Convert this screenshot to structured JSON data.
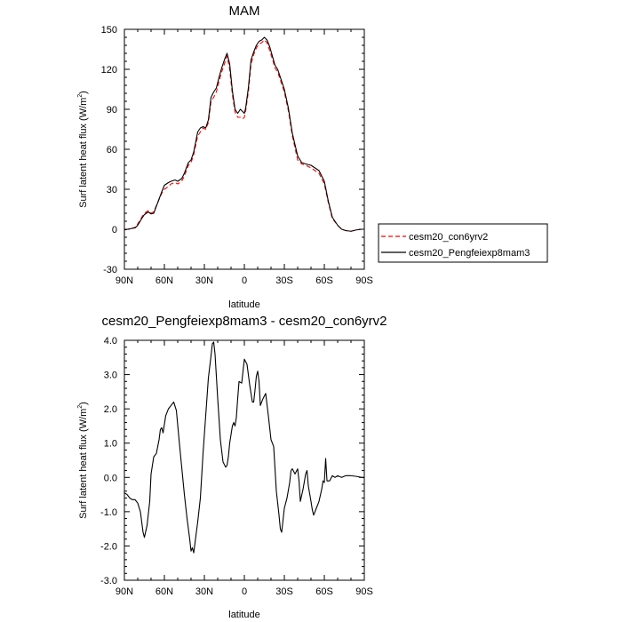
{
  "chart_data": [
    {
      "type": "line",
      "title": "MAM",
      "xlabel": "latitude",
      "ylabel": "Surf latent heat flux (W/m",
      "ylabel_sup": "2",
      "ylabel_close": ")",
      "xlim": [
        90,
        -90
      ],
      "ylim": [
        -30,
        150
      ],
      "x_ticks": [
        90,
        60,
        30,
        0,
        -30,
        -60,
        -90
      ],
      "x_tick_labels": [
        "90N",
        "60N",
        "30N",
        "0",
        "30S",
        "60S",
        "90S"
      ],
      "y_ticks": [
        -30,
        0,
        30,
        60,
        90,
        120,
        150
      ],
      "y_tick_labels": [
        "-30",
        "0",
        "30",
        "60",
        "90",
        "120",
        "150"
      ],
      "legend_position": "outside-right",
      "series": [
        {
          "name": "cesm20_con6yrv2",
          "color": "#ff0000",
          "dash": "dashed",
          "x": [
            90,
            85,
            82,
            80,
            77,
            75,
            72,
            70,
            68,
            65,
            62,
            60,
            57,
            55,
            52,
            50,
            47,
            45,
            42,
            40,
            38,
            35,
            33,
            31,
            29,
            27,
            25,
            23,
            21,
            19,
            17,
            15,
            13,
            11,
            9,
            7,
            5,
            3,
            1,
            0,
            -1,
            -3,
            -5,
            -7,
            -9,
            -11,
            -13,
            -15,
            -17,
            -19,
            -21,
            -23,
            -25,
            -27,
            -30,
            -33,
            -36,
            -40,
            -43,
            -46,
            -50,
            -53,
            -56,
            -60,
            -63,
            -66,
            -70,
            -73,
            -76,
            -80,
            -84,
            -88,
            -90
          ],
          "y": [
            -0.5,
            0.5,
            1.5,
            4,
            9,
            12,
            14,
            12,
            13,
            20,
            27,
            30,
            32,
            34,
            35,
            34,
            36,
            40,
            48,
            50,
            56,
            70,
            73,
            76,
            75,
            80,
            96,
            99,
            103,
            111,
            118,
            124,
            130,
            120,
            101,
            88,
            84,
            84,
            83,
            84,
            89,
            103,
            124,
            131,
            136,
            139,
            140,
            142,
            140,
            134,
            128,
            121,
            118,
            112,
            103,
            89,
            70,
            52,
            49,
            48,
            46,
            44,
            42,
            34,
            20,
            8,
            3,
            0,
            -1,
            -1.5,
            -0.5,
            0,
            0
          ]
        },
        {
          "name": "cesm20_Pengfeiexp8mam3",
          "color": "#000000",
          "dash": "solid",
          "x": [
            90,
            85,
            82,
            80,
            77,
            75,
            72,
            70,
            68,
            65,
            62,
            60,
            57,
            55,
            52,
            50,
            47,
            45,
            42,
            40,
            38,
            35,
            33,
            31,
            29,
            27,
            25,
            23,
            21,
            19,
            17,
            15,
            13,
            11,
            9,
            7,
            5,
            3,
            1,
            0,
            -1,
            -3,
            -5,
            -7,
            -9,
            -11,
            -13,
            -15,
            -17,
            -19,
            -21,
            -23,
            -25,
            -27,
            -30,
            -33,
            -36,
            -40,
            -43,
            -46,
            -50,
            -53,
            -56,
            -60,
            -63,
            -66,
            -70,
            -73,
            -76,
            -80,
            -84,
            -88,
            -90
          ],
          "y": [
            -0.5,
            0.5,
            1,
            3,
            8,
            11,
            13,
            11.5,
            12,
            20,
            28,
            33,
            35,
            36,
            37,
            36,
            38,
            42,
            50,
            52,
            58,
            73,
            76,
            77,
            76,
            82,
            99,
            103,
            106,
            114,
            121,
            127,
            132,
            124,
            104,
            90,
            87,
            90,
            88,
            87,
            91,
            106,
            127,
            133,
            138,
            141,
            142,
            144,
            142,
            137,
            130,
            123,
            120,
            114,
            105,
            91,
            72,
            55,
            50,
            49,
            48,
            46,
            44,
            36,
            21,
            9,
            3,
            0,
            -1,
            -1.5,
            -0.5,
            0,
            0
          ]
        }
      ]
    },
    {
      "type": "line",
      "title": "cesm20_Pengfeiexp8mam3 - cesm20_con6yrv2",
      "xlabel": "latitude",
      "ylabel": "Surf latent heat flux (W/m",
      "ylabel_sup": "2",
      "ylabel_close": ")",
      "xlim": [
        90,
        -90
      ],
      "ylim": [
        -3.0,
        4.0
      ],
      "x_ticks": [
        90,
        60,
        30,
        0,
        -30,
        -60,
        -90
      ],
      "x_tick_labels": [
        "90N",
        "60N",
        "30N",
        "0",
        "30S",
        "60S",
        "90S"
      ],
      "y_ticks": [
        -3.0,
        -2.0,
        -1.0,
        0.0,
        1.0,
        2.0,
        3.0,
        4.0
      ],
      "y_tick_labels": [
        "-3.0",
        "-2.0",
        "-1.0",
        "0.0",
        "1.0",
        "2.0",
        "3.0",
        "4.0"
      ],
      "series": [
        {
          "color": "#000000",
          "x": [
            90,
            88,
            86,
            84,
            82,
            80,
            78,
            77,
            76,
            75,
            73,
            71,
            70,
            68,
            66,
            64,
            63,
            62,
            61,
            59,
            57,
            55,
            53,
            51,
            49,
            47,
            45,
            43,
            41,
            40,
            39,
            38,
            37,
            35,
            33,
            31,
            29,
            27,
            25,
            24,
            23,
            22,
            20,
            18,
            16,
            14,
            13,
            12,
            11,
            9,
            8,
            7,
            6,
            5,
            4,
            2,
            0,
            -2,
            -4,
            -6,
            -7,
            -8,
            -9,
            -10,
            -11,
            -12,
            -13,
            -14,
            -16,
            -18,
            -20,
            -22,
            -24,
            -26,
            -27,
            -28,
            -30,
            -32,
            -34,
            -35,
            -36,
            -38,
            -40,
            -41,
            -42,
            -44,
            -46,
            -47,
            -48,
            -50,
            -51,
            -52,
            -54,
            -56,
            -58,
            -59,
            -60,
            -61,
            -62,
            -64,
            -66,
            -68,
            -70,
            -73,
            -76,
            -80,
            -84,
            -88,
            -90
          ],
          "y": [
            -0.45,
            -0.5,
            -0.6,
            -0.65,
            -0.65,
            -0.75,
            -1.0,
            -1.3,
            -1.6,
            -1.75,
            -1.4,
            -0.7,
            0.1,
            0.6,
            0.7,
            1.1,
            1.4,
            1.45,
            1.3,
            1.8,
            2.0,
            2.1,
            2.2,
            1.95,
            1.1,
            0.3,
            -0.5,
            -1.2,
            -1.8,
            -2.15,
            -2.05,
            -2.2,
            -1.9,
            -1.3,
            -0.6,
            0.7,
            1.8,
            2.9,
            3.55,
            3.9,
            3.95,
            3.6,
            2.3,
            1.1,
            0.45,
            0.3,
            0.35,
            0.6,
            1.0,
            1.5,
            1.6,
            1.5,
            1.75,
            2.3,
            2.8,
            2.75,
            3.45,
            3.3,
            2.7,
            2.2,
            2.2,
            2.55,
            2.95,
            3.1,
            2.8,
            2.1,
            2.2,
            2.3,
            2.45,
            1.8,
            1.1,
            0.9,
            -0.4,
            -1.1,
            -1.5,
            -1.6,
            -0.9,
            -0.6,
            -0.15,
            0.2,
            0.25,
            0.1,
            0.25,
            -0.1,
            -0.7,
            -0.35,
            0.1,
            0.2,
            -0.25,
            -0.7,
            -0.95,
            -1.1,
            -0.9,
            -0.7,
            -0.35,
            -0.1,
            -0.15,
            0.55,
            -0.1,
            -0.1,
            0.05,
            0.0,
            0.05,
            0.0,
            0.05,
            0.05,
            0.03,
            0.0,
            0.0
          ]
        }
      ]
    }
  ]
}
